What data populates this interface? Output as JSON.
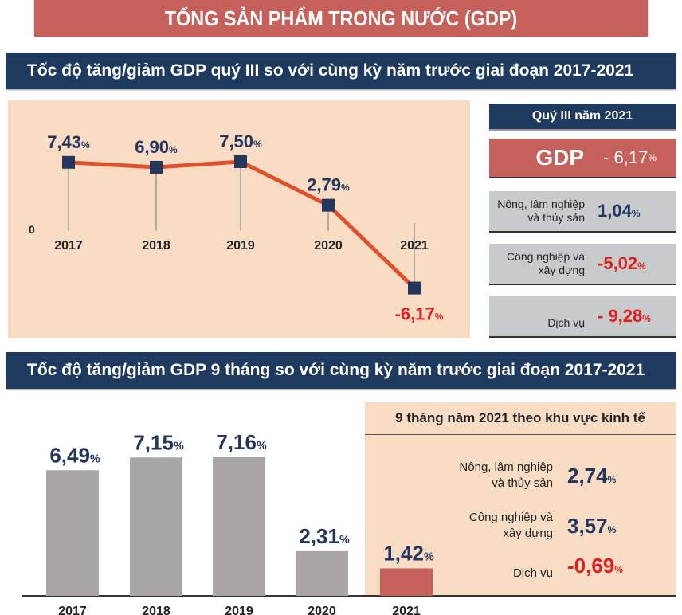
{
  "title": "TỔNG SẢN PHẨM TRONG NƯỚC (GDP)",
  "colors": {
    "red": "#c5605a",
    "navy": "#1f3a5f",
    "peach": "#f8dcc4",
    "grey": "#c8cbcc",
    "line": "#e0502a",
    "bar": "#a9a5a6",
    "neg": "#e02020",
    "pos": "#24365e"
  },
  "chart_data": [
    {
      "type": "line",
      "title": "Tốc độ tăng/giảm GDP quý III so với cùng kỳ năm trước giai đoạn 2017-2021",
      "categories": [
        "2017",
        "2018",
        "2019",
        "2020",
        "2021"
      ],
      "values": [
        7.43,
        6.9,
        7.5,
        2.79,
        -6.17
      ],
      "labels": [
        "7,43",
        "6,90",
        "7,50",
        "2,79",
        "-6,17"
      ],
      "zero_label": "0",
      "unit": "%",
      "grid": false
    },
    {
      "type": "bar",
      "title": "Tốc độ tăng/giảm GDP 9 tháng so với cùng kỳ năm trước giai đoạn 2017-2021",
      "categories": [
        "2017",
        "2018",
        "2019",
        "2020",
        "2021"
      ],
      "values": [
        6.49,
        7.15,
        7.16,
        2.31,
        1.42
      ],
      "labels": [
        "6,49",
        "7,15",
        "7,16",
        "2,31",
        "1,42"
      ],
      "unit": "%",
      "grid": false
    }
  ],
  "q3": {
    "header": "Quý III năm 2021",
    "gdp_label": "GDP",
    "gdp_value": "- 6,17",
    "pct": "%",
    "rows": [
      {
        "l1": "Nông, lâm nghiệp",
        "l2": "và thủy sản",
        "value": "1,04"
      },
      {
        "l1": "Công nghiệp và",
        "l2": "xây dựng",
        "value": "-5,02"
      },
      {
        "l1": "",
        "l2": "Dịch vụ",
        "value": "- 9,28"
      }
    ]
  },
  "nine": {
    "header": "9 tháng năm 2021 theo khu vực kinh tế",
    "rows": [
      {
        "l1": "Nông, lâm nghiệp",
        "l2": "và thủy sản",
        "value": "2,74"
      },
      {
        "l1": "Công nghiệp và",
        "l2": "xây dựng",
        "value": "3,57"
      },
      {
        "l1": "",
        "l2": "Dịch vụ",
        "value": "-0,69"
      }
    ]
  }
}
